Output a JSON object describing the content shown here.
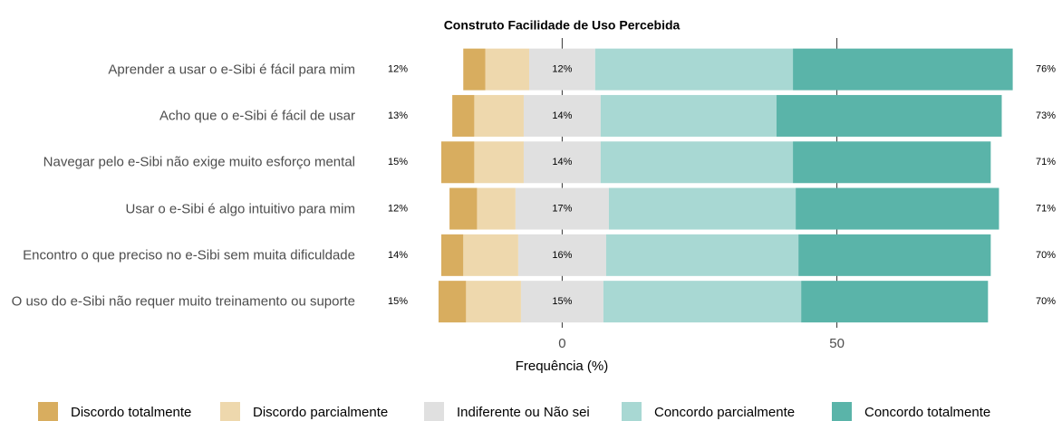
{
  "chart_data": {
    "type": "likert",
    "title": "Construto Facilidade de Uso Percebida",
    "x_label": "Frequência (%)",
    "categories": [
      "Aprender a usar o e-Sibi é fácil para mim",
      "Acho que o e-Sibi é fácil de usar",
      "Navegar pelo e-Sibi não exige muito esforço mental",
      "Usar o e-Sibi é algo intuitivo para mim",
      "Encontro o que preciso no e-Sibi sem muita dificuldade",
      "O uso do e-Sibi não requer muito treinamento ou suporte"
    ],
    "series": [
      {
        "name": "Discordo totalmente",
        "color": "#d8ad5f",
        "values": [
          4,
          4,
          6,
          5,
          4,
          5
        ]
      },
      {
        "name": "Discordo parcialmente",
        "color": "#eed8ad",
        "values": [
          8,
          9,
          9,
          7,
          10,
          10
        ]
      },
      {
        "name": "Indiferente ou Não sei",
        "color": "#e0e0e0",
        "values": [
          12,
          14,
          14,
          17,
          16,
          15
        ]
      },
      {
        "name": "Concordo parcialmente",
        "color": "#a8d8d3",
        "values": [
          36,
          32,
          35,
          34,
          35,
          36
        ]
      },
      {
        "name": "Concordo totalmente",
        "color": "#5ab4a9",
        "values": [
          40,
          41,
          36,
          37,
          35,
          34
        ]
      }
    ],
    "left_labels": [
      "12%",
      "13%",
      "15%",
      "12%",
      "14%",
      "15%"
    ],
    "center_labels": [
      "12%",
      "14%",
      "14%",
      "17%",
      "16%",
      "15%"
    ],
    "right_labels": [
      "76%",
      "73%",
      "71%",
      "71%",
      "70%",
      "70%"
    ],
    "xlim": [
      -22,
      88
    ],
    "xticks": [
      0,
      50
    ]
  }
}
